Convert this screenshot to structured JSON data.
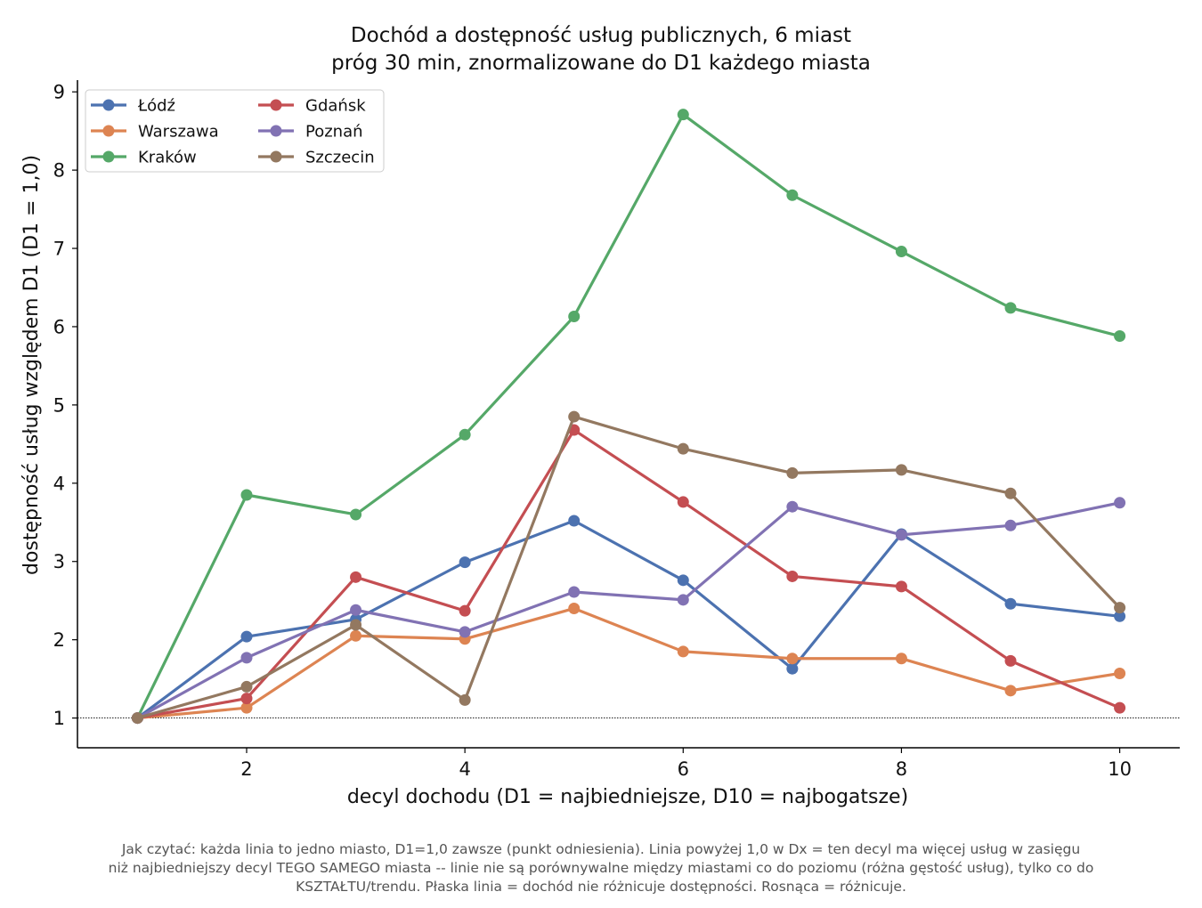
{
  "title_line1": "Dochód a dostępność usług publicznych, 6 miast",
  "title_line2": "próg 30 min, znormalizowane do D1 każdego miasta",
  "note_line1": "Jak czytać: każda linia to jedno miasto, D1=1,0 zawsze (punkt odniesienia). Linia powyżej 1,0 w Dx = ten decyl ma więcej usług w zasięgu",
  "note_line2": "niż najbiedniejszy decyl TEGO SAMEGO miasta -- linie nie są porównywalne między miastami co do poziomu (różna gęstość usług), tylko co do",
  "note_line3": "KSZTAŁTU/trendu. Płaska linia = dochód nie różnicuje dostępności. Rosnąca = różnicuje.",
  "chart_data": {
    "type": "line",
    "xlabel": "decyl dochodu (D1 = najbiedniejsze, D10 = najbogatsze)",
    "ylabel": "dostępność usług względem D1 (D1 = 1,0)",
    "x": [
      1,
      2,
      3,
      4,
      5,
      6,
      7,
      8,
      9,
      10
    ],
    "xlim": [
      0.45,
      10.55
    ],
    "ylim": [
      0.62,
      9.15
    ],
    "xticks": [
      2,
      4,
      6,
      8,
      10
    ],
    "yticks": [
      1,
      2,
      3,
      4,
      5,
      6,
      7,
      8,
      9
    ],
    "reference_line": 1.0,
    "legend_position": "top-left",
    "grid": false,
    "series": [
      {
        "name": "Łódź",
        "color": "#4c72b0",
        "values": [
          1.0,
          2.04,
          2.26,
          2.99,
          3.52,
          2.76,
          1.63,
          3.35,
          2.46,
          2.3
        ]
      },
      {
        "name": "Warszawa",
        "color": "#dd8452",
        "values": [
          1.0,
          1.13,
          2.05,
          2.01,
          2.4,
          1.85,
          1.76,
          1.76,
          1.35,
          1.57
        ]
      },
      {
        "name": "Kraków",
        "color": "#55a868",
        "values": [
          1.0,
          3.85,
          3.6,
          4.62,
          6.13,
          8.71,
          7.68,
          6.96,
          6.24,
          5.88
        ]
      },
      {
        "name": "Gdańsk",
        "color": "#c44e52",
        "values": [
          1.0,
          1.25,
          2.8,
          2.37,
          4.68,
          3.76,
          2.81,
          2.68,
          1.73,
          1.13
        ]
      },
      {
        "name": "Poznań",
        "color": "#8172b3",
        "values": [
          1.0,
          1.77,
          2.38,
          2.1,
          2.61,
          2.51,
          3.7,
          3.34,
          3.46,
          3.75
        ]
      },
      {
        "name": "Szczecin",
        "color": "#937860",
        "values": [
          1.0,
          1.4,
          2.19,
          1.23,
          4.85,
          4.44,
          4.13,
          4.17,
          3.87,
          2.41
        ]
      }
    ]
  }
}
